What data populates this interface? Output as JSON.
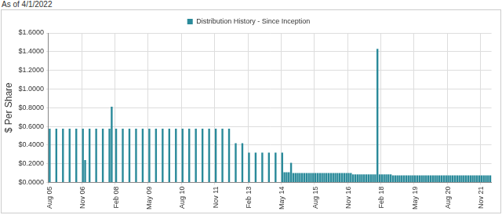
{
  "chart_data": {
    "type": "bar",
    "subtitle": "As of 4/1/2022",
    "y_label": "$ Per Share",
    "legend": "top",
    "grid": true,
    "ylim": [
      0,
      1.6
    ],
    "yticks": [
      {
        "value": 0,
        "label": "$0.0000"
      },
      {
        "value": 0.2,
        "label": "$0.2000"
      },
      {
        "value": 0.4,
        "label": "$0.4000"
      },
      {
        "value": 0.6,
        "label": "$0.6000"
      },
      {
        "value": 0.8,
        "label": "$0.8000"
      },
      {
        "value": 1.0,
        "label": "$1.0000"
      },
      {
        "value": 1.2,
        "label": "$1.2000"
      },
      {
        "value": 1.4,
        "label": "$1.4000"
      },
      {
        "value": 1.6,
        "label": "$1.6000"
      }
    ],
    "categories": [
      "Aug 05",
      null,
      null,
      null,
      null,
      null,
      null,
      null,
      null,
      null,
      null,
      null,
      null,
      null,
      null,
      "Nov 06",
      null,
      null,
      null,
      null,
      null,
      null,
      null,
      null,
      null,
      null,
      null,
      null,
      null,
      null,
      "Feb 08",
      null,
      null,
      null,
      null,
      null,
      null,
      null,
      null,
      null,
      null,
      null,
      null,
      null,
      null,
      "May 09",
      null,
      null,
      null,
      null,
      null,
      null,
      null,
      null,
      null,
      null,
      null,
      null,
      null,
      null,
      "Aug 10",
      null,
      null,
      null,
      null,
      null,
      null,
      null,
      null,
      null,
      null,
      null,
      null,
      null,
      null,
      "Nov 11",
      null,
      null,
      null,
      null,
      null,
      null,
      null,
      null,
      null,
      null,
      null,
      null,
      null,
      null,
      "Feb 13",
      null,
      null,
      null,
      null,
      null,
      null,
      null,
      null,
      null,
      null,
      null,
      null,
      null,
      null,
      "May 14",
      null,
      null,
      null,
      null,
      null,
      null,
      null,
      null,
      null,
      null,
      null,
      null,
      null,
      null,
      "Aug 15",
      null,
      null,
      null,
      null,
      null,
      null,
      null,
      null,
      null,
      null,
      null,
      null,
      null,
      null,
      "Nov 16",
      null,
      null,
      null,
      null,
      null,
      null,
      null,
      null,
      null,
      null,
      null,
      null,
      null,
      null,
      "Feb 18",
      null,
      null,
      null,
      null,
      null,
      null,
      null,
      null,
      null,
      null,
      null,
      null,
      null,
      null,
      "May 19",
      null,
      null,
      null,
      null,
      null,
      null,
      null,
      null,
      null,
      null,
      null,
      null,
      null,
      null,
      "Aug 20",
      null,
      null,
      null,
      null,
      null,
      null,
      null,
      null,
      null,
      null,
      null,
      null,
      null,
      null,
      "Nov 21",
      null,
      null,
      null,
      null
    ],
    "series": [
      {
        "name": "Distribution History - Since Inception",
        "color": "#2a8a9a",
        "values": [
          0.575,
          null,
          null,
          0.575,
          null,
          null,
          0.575,
          null,
          null,
          0.575,
          null,
          null,
          0.575,
          null,
          null,
          0.575,
          0.24,
          null,
          0.575,
          null,
          null,
          0.575,
          null,
          null,
          0.575,
          null,
          null,
          0.575,
          0.81,
          null,
          0.575,
          null,
          null,
          0.575,
          null,
          null,
          0.575,
          null,
          null,
          0.575,
          null,
          null,
          0.575,
          null,
          null,
          0.575,
          null,
          null,
          0.575,
          null,
          null,
          0.575,
          null,
          null,
          0.575,
          null,
          null,
          0.575,
          null,
          null,
          0.575,
          null,
          null,
          0.575,
          null,
          null,
          0.575,
          null,
          null,
          0.575,
          null,
          null,
          0.575,
          null,
          null,
          0.575,
          null,
          null,
          0.575,
          null,
          null,
          0.575,
          null,
          null,
          0.42,
          null,
          null,
          0.42,
          null,
          null,
          0.32,
          null,
          null,
          0.32,
          null,
          null,
          0.32,
          null,
          null,
          0.32,
          null,
          null,
          0.32,
          null,
          null,
          0.32,
          0.11,
          0.11,
          0.11,
          0.21,
          0.1,
          0.1,
          0.1,
          0.1,
          0.1,
          0.1,
          0.1,
          0.1,
          0.1,
          0.1,
          0.1,
          0.1,
          0.1,
          0.1,
          0.1,
          0.1,
          0.1,
          0.1,
          0.1,
          0.1,
          0.1,
          0.1,
          0.1,
          0.1,
          0.1,
          0.1,
          0.1,
          0.085,
          0.085,
          0.085,
          0.085,
          0.085,
          0.085,
          0.085,
          0.085,
          0.085,
          0.085,
          0.085,
          1.43,
          0.085,
          0.085,
          0.085,
          0.085,
          0.085,
          0.085,
          0.075,
          0.075,
          0.075,
          0.075,
          0.075,
          0.075,
          0.075,
          0.075,
          0.075,
          0.075,
          0.075,
          0.075,
          0.075,
          0.075,
          0.075,
          0.075,
          0.075,
          0.075,
          0.075,
          0.075,
          0.075,
          0.075,
          0.075,
          0.075,
          0.075,
          0.075,
          0.075,
          0.075,
          0.075,
          0.075,
          0.075,
          0.075,
          0.075,
          0.075,
          0.075,
          0.075,
          0.075,
          0.075,
          0.075,
          0.075,
          0.075,
          0.075,
          0.075,
          0.075,
          0.075
        ]
      }
    ]
  }
}
